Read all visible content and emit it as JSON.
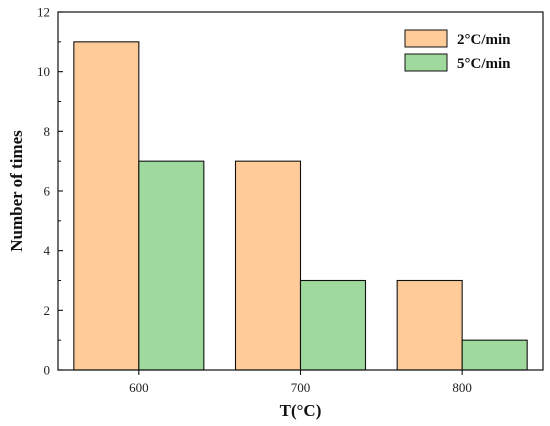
{
  "chart_data": {
    "type": "bar",
    "categories": [
      "600",
      "700",
      "800"
    ],
    "series": [
      {
        "name": "2°C/min",
        "values": [
          11,
          7,
          3
        ],
        "color": "#FFCC99"
      },
      {
        "name": "5°C/min",
        "values": [
          7,
          3,
          1
        ],
        "color": "#A0D99E"
      }
    ],
    "xlabel": "T(°C)",
    "ylabel": "Number of times",
    "ylim": [
      0,
      12
    ],
    "yticks": [
      0,
      2,
      4,
      6,
      8,
      10,
      12
    ],
    "grid": false,
    "legend_position": "top-right"
  },
  "colors": {
    "bar_stroke": "#111111",
    "axis": "#111111"
  }
}
